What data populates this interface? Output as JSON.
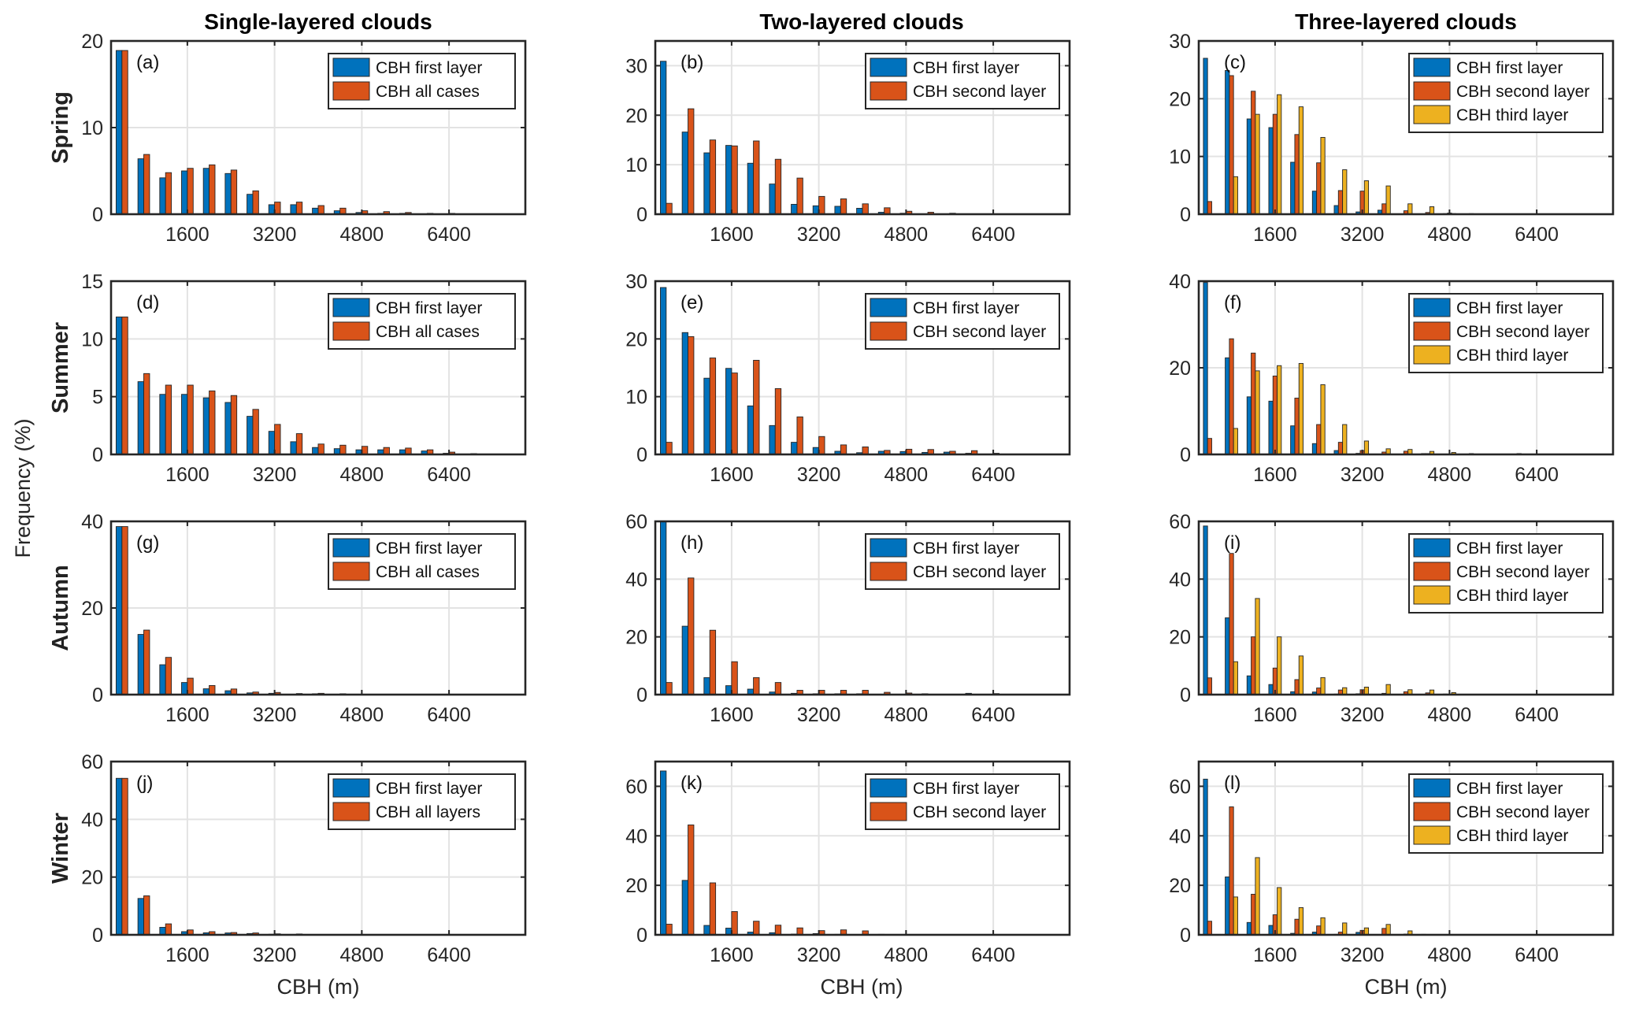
{
  "chart_data": {
    "type": "bar",
    "figure": {
      "column_titles": [
        "Single-layered clouds",
        "Two-layered clouds",
        "Three-layered clouds"
      ],
      "row_labels": [
        "Spring",
        "Summer",
        "Autumn",
        "Winter"
      ],
      "ylabel": "Frequency (%)",
      "xlabel": "CBH (m)",
      "xlim": [
        200,
        7800
      ],
      "xticks": [
        1600,
        3200,
        4800,
        6400
      ],
      "grid": true,
      "legend_placement": "top-right",
      "colors": {
        "first": "#0072BD",
        "second": "#D95319",
        "third": "#EDB120"
      }
    },
    "x": [
      400,
      800,
      1200,
      1600,
      2000,
      2400,
      2800,
      3200,
      3600,
      4000,
      4400,
      4800,
      5200,
      5600,
      6000,
      6400,
      6800,
      7200,
      7600
    ],
    "panels": [
      {
        "label": "(a)",
        "row": 0,
        "col": 0,
        "ylim": [
          0,
          20
        ],
        "yticks": [
          0,
          10,
          20
        ],
        "series": [
          {
            "name": "CBH first layer",
            "color": "#0072BD",
            "values": [
              18.9,
              6.4,
              4.2,
              5.0,
              5.3,
              4.7,
              2.3,
              1.1,
              1.1,
              0.7,
              0.4,
              0.2,
              0.1,
              0.1,
              0.05,
              0.05,
              0,
              0,
              0
            ]
          },
          {
            "name": "CBH all cases",
            "color": "#D95319",
            "values": [
              18.9,
              6.9,
              4.8,
              5.3,
              5.7,
              5.1,
              2.7,
              1.4,
              1.4,
              1.0,
              0.7,
              0.4,
              0.3,
              0.2,
              0.1,
              0.1,
              0.05,
              0,
              0
            ]
          }
        ]
      },
      {
        "label": "(b)",
        "row": 0,
        "col": 1,
        "ylim": [
          0,
          35
        ],
        "yticks": [
          0,
          10,
          20,
          30
        ],
        "series": [
          {
            "name": "CBH first layer",
            "color": "#0072BD",
            "values": [
              30.9,
              16.6,
              12.4,
              13.9,
              10.3,
              6.1,
              2.0,
              1.7,
              1.6,
              1.2,
              0.4,
              0.2,
              0.05,
              0.02,
              0,
              0,
              0,
              0,
              0
            ]
          },
          {
            "name": "CBH second layer",
            "color": "#D95319",
            "values": [
              2.2,
              21.3,
              15.0,
              13.8,
              14.8,
              11.1,
              7.3,
              3.6,
              3.1,
              2.1,
              1.3,
              0.6,
              0.4,
              0.2,
              0.05,
              0.05,
              0.02,
              0,
              0
            ]
          }
        ]
      },
      {
        "label": "(c)",
        "row": 0,
        "col": 2,
        "ylim": [
          0,
          30
        ],
        "yticks": [
          0,
          10,
          20,
          30
        ],
        "series": [
          {
            "name": "CBH first layer",
            "color": "#0072BD",
            "values": [
              27.0,
              24.9,
              16.5,
              15.0,
              9.0,
              4.0,
              1.5,
              0.4,
              0.7,
              0,
              0,
              0.1,
              0,
              0.05,
              0,
              0.05,
              0,
              0,
              0
            ]
          },
          {
            "name": "CBH second layer",
            "color": "#D95319",
            "values": [
              2.2,
              24.0,
              21.3,
              17.3,
              13.8,
              8.9,
              4.1,
              4.0,
              1.8,
              0.6,
              0.3,
              0.2,
              0.1,
              0,
              0,
              0,
              0,
              0,
              0
            ]
          },
          {
            "name": "CBH third layer",
            "color": "#EDB120",
            "values": [
              0,
              6.5,
              17.3,
              20.7,
              18.6,
              13.3,
              7.7,
              5.8,
              4.9,
              1.8,
              1.3,
              0.1,
              0.05,
              0,
              0,
              0,
              0,
              0,
              0
            ]
          }
        ]
      },
      {
        "label": "(d)",
        "row": 1,
        "col": 0,
        "ylim": [
          0,
          15
        ],
        "yticks": [
          0,
          5,
          10,
          15
        ],
        "series": [
          {
            "name": "CBH first layer",
            "color": "#0072BD",
            "values": [
              11.9,
              6.3,
              5.2,
              5.2,
              4.9,
              4.5,
              3.3,
              2.0,
              1.1,
              0.6,
              0.5,
              0.4,
              0.4,
              0.4,
              0.3,
              0.1,
              0.03,
              0,
              0
            ]
          },
          {
            "name": "CBH all cases",
            "color": "#D95319",
            "values": [
              11.9,
              7.0,
              6.0,
              6.0,
              5.5,
              5.1,
              3.9,
              2.6,
              1.8,
              0.9,
              0.8,
              0.7,
              0.6,
              0.55,
              0.4,
              0.2,
              0.07,
              0.02,
              0.02
            ]
          }
        ]
      },
      {
        "label": "(e)",
        "row": 1,
        "col": 1,
        "ylim": [
          0,
          30
        ],
        "yticks": [
          0,
          10,
          20,
          30
        ],
        "series": [
          {
            "name": "CBH first layer",
            "color": "#0072BD",
            "values": [
              28.9,
              21.1,
              13.2,
              14.9,
              8.4,
              5.0,
              2.1,
              1.2,
              0.55,
              0.3,
              0.55,
              0.5,
              0.35,
              0.4,
              0.2,
              0.05,
              0.03,
              0,
              0
            ]
          },
          {
            "name": "CBH second layer",
            "color": "#D95319",
            "values": [
              2.1,
              20.4,
              16.7,
              14.1,
              16.3,
              11.4,
              6.5,
              3.1,
              1.65,
              1.3,
              0.7,
              0.9,
              0.85,
              0.55,
              0.65,
              0.2,
              0,
              0,
              0
            ]
          }
        ]
      },
      {
        "label": "(f)",
        "row": 1,
        "col": 2,
        "ylim": [
          0,
          40
        ],
        "yticks": [
          0,
          20,
          40
        ],
        "series": [
          {
            "name": "CBH first layer",
            "color": "#0072BD",
            "values": [
              39.7,
              22.3,
              13.3,
              12.3,
              6.6,
              2.5,
              0.9,
              0.25,
              0.1,
              0.05,
              0.2,
              0.05,
              0.05,
              0.05,
              0,
              0,
              0,
              0,
              0
            ]
          },
          {
            "name": "CBH second layer",
            "color": "#D95319",
            "values": [
              3.7,
              26.7,
              23.4,
              18.1,
              13.0,
              6.9,
              2.8,
              0.9,
              0.55,
              0.75,
              0.2,
              0,
              0.2,
              0.1,
              0.1,
              0,
              0,
              0,
              0
            ]
          },
          {
            "name": "CBH third layer",
            "color": "#EDB120",
            "values": [
              0,
              6.0,
              19.3,
              20.5,
              21.0,
              16.1,
              6.9,
              3.1,
              1.3,
              1.15,
              0.7,
              0.45,
              0.1,
              0.05,
              0.2,
              0,
              0,
              0,
              0
            ]
          }
        ]
      },
      {
        "label": "(g)",
        "row": 2,
        "col": 0,
        "ylim": [
          0,
          40
        ],
        "yticks": [
          0,
          20,
          40
        ],
        "series": [
          {
            "name": "CBH first layer",
            "color": "#0072BD",
            "values": [
              38.8,
              13.9,
              6.9,
              2.8,
              1.35,
              0.9,
              0.4,
              0.3,
              0.1,
              0.2,
              0.05,
              0.02,
              0,
              0,
              0,
              0,
              0,
              0,
              0
            ]
          },
          {
            "name": "CBH all cases",
            "color": "#D95319",
            "values": [
              38.8,
              14.9,
              8.6,
              3.8,
              2.1,
              1.3,
              0.6,
              0.5,
              0.25,
              0.3,
              0.2,
              0.05,
              0,
              0,
              0,
              0,
              0,
              0,
              0
            ]
          }
        ]
      },
      {
        "label": "(h)",
        "row": 2,
        "col": 1,
        "ylim": [
          0,
          60
        ],
        "yticks": [
          0,
          20,
          40,
          60
        ],
        "series": [
          {
            "name": "CBH first layer",
            "color": "#0072BD",
            "values": [
              60.5,
              23.7,
              5.9,
              3.1,
              1.9,
              0.9,
              0.45,
              0.3,
              0.3,
              0.3,
              0.1,
              0.05,
              0.3,
              0.05,
              0.45,
              0,
              0,
              0,
              0
            ]
          },
          {
            "name": "CBH second layer",
            "color": "#D95319",
            "values": [
              4.2,
              40.4,
              22.3,
              11.4,
              5.9,
              4.2,
              1.5,
              1.5,
              1.5,
              1.5,
              0.8,
              0.55,
              0.05,
              0,
              0.05,
              0.35,
              0,
              0,
              0
            ]
          }
        ]
      },
      {
        "label": "(i)",
        "row": 2,
        "col": 2,
        "ylim": [
          0,
          60
        ],
        "yticks": [
          0,
          20,
          40,
          60
        ],
        "series": [
          {
            "name": "CBH first layer",
            "color": "#0072BD",
            "values": [
              58.4,
              26.6,
              6.5,
              3.5,
              1.0,
              0.9,
              0.2,
              0.3,
              0.1,
              0.05,
              0,
              0.2,
              0.05,
              0.05,
              0,
              0,
              0,
              0,
              0
            ]
          },
          {
            "name": "CBH second layer",
            "color": "#D95319",
            "values": [
              5.8,
              48.9,
              20.0,
              9.2,
              5.2,
              2.3,
              1.6,
              1.7,
              0.45,
              1.0,
              0.6,
              0.05,
              0.05,
              0,
              0,
              0,
              0,
              0,
              0
            ]
          },
          {
            "name": "CBH third layer",
            "color": "#EDB120",
            "values": [
              0,
              11.4,
              33.3,
              20.0,
              13.4,
              5.9,
              2.4,
              2.6,
              3.5,
              1.7,
              1.6,
              0.7,
              0,
              0,
              0,
              0,
              0,
              0,
              0
            ]
          }
        ]
      },
      {
        "label": "(j)",
        "row": 3,
        "col": 0,
        "ylim": [
          0,
          60
        ],
        "yticks": [
          0,
          20,
          40,
          60
        ],
        "series": [
          {
            "name": "CBH first layer",
            "color": "#0072BD",
            "values": [
              54.2,
              12.6,
              2.6,
              1.1,
              0.7,
              0.65,
              0.45,
              0.2,
              0.15,
              0.05,
              0,
              0,
              0,
              0,
              0,
              0,
              0,
              0,
              0
            ]
          },
          {
            "name": "CBH all layers",
            "color": "#D95319",
            "values": [
              54.2,
              13.5,
              3.8,
              1.7,
              1.1,
              0.8,
              0.65,
              0.35,
              0.3,
              0.15,
              0,
              0,
              0,
              0,
              0,
              0,
              0,
              0,
              0
            ]
          }
        ]
      },
      {
        "label": "(k)",
        "row": 3,
        "col": 1,
        "ylim": [
          0,
          70
        ],
        "yticks": [
          0,
          20,
          40,
          60
        ],
        "series": [
          {
            "name": "CBH first layer",
            "color": "#0072BD",
            "values": [
              66.2,
              22.0,
              3.8,
              2.7,
              1.1,
              0.85,
              0.3,
              0.5,
              0.2,
              0,
              0.2,
              0,
              0,
              0,
              0,
              0,
              0,
              0,
              0
            ]
          },
          {
            "name": "CBH second layer",
            "color": "#D95319",
            "values": [
              4.3,
              44.4,
              21.0,
              9.4,
              5.5,
              3.9,
              2.8,
              1.7,
              2.0,
              1.6,
              0,
              0,
              0,
              0,
              0,
              0,
              0,
              0,
              0
            ]
          }
        ]
      },
      {
        "label": "(l)",
        "row": 3,
        "col": 2,
        "ylim": [
          0,
          70
        ],
        "yticks": [
          0,
          20,
          40,
          60
        ],
        "series": [
          {
            "name": "CBH first layer",
            "color": "#0072BD",
            "values": [
              62.9,
              23.4,
              5.0,
              3.8,
              0.6,
              1.1,
              0.2,
              1.0,
              0,
              0,
              0.2,
              0,
              0,
              0,
              0,
              0,
              0,
              0,
              0
            ]
          },
          {
            "name": "CBH second layer",
            "color": "#D95319",
            "values": [
              5.5,
              51.7,
              16.4,
              8.1,
              6.3,
              3.6,
              1.1,
              1.8,
              2.6,
              0.3,
              0,
              0,
              0,
              0,
              0,
              0,
              0,
              0,
              0
            ]
          },
          {
            "name": "CBH third layer",
            "color": "#EDB120",
            "values": [
              0,
              15.3,
              31.2,
              19.1,
              11.0,
              6.9,
              4.8,
              2.8,
              4.2,
              1.6,
              0,
              0,
              0,
              0,
              0,
              0,
              0,
              0,
              0
            ]
          }
        ]
      }
    ]
  }
}
